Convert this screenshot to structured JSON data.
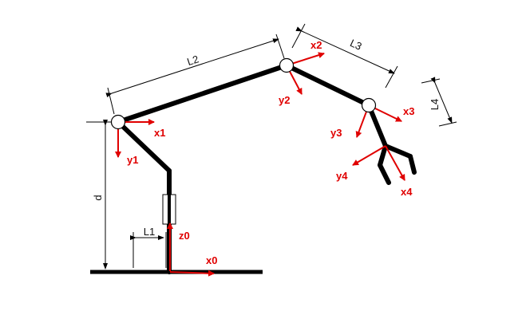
{
  "labels": {
    "L1": "L1",
    "L2": "L2",
    "L3": "L3",
    "L4": "L4",
    "d": "d"
  },
  "axes": {
    "x0": "x0",
    "z0": "z0",
    "x1": "x1",
    "y1": "y1",
    "x2": "x2",
    "y2": "y2",
    "x3": "x3",
    "y3": "y3",
    "x4": "x4",
    "y4": "y4"
  },
  "colors": {
    "axis": "#e00000",
    "link": "#000000"
  }
}
